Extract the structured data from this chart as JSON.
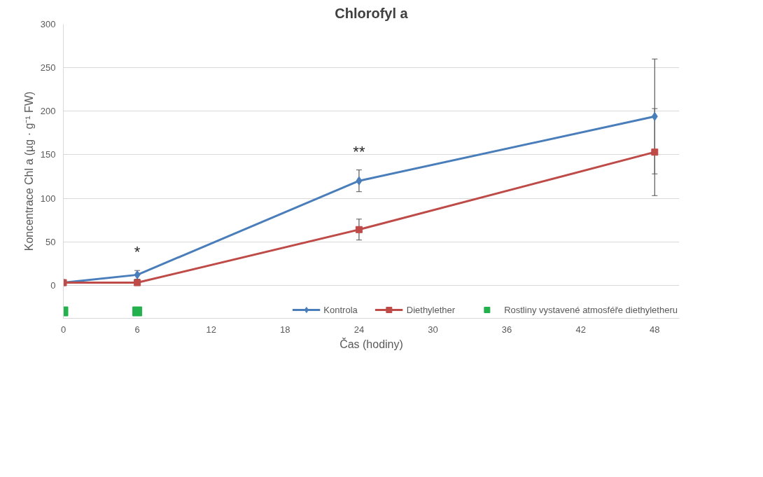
{
  "chart_data": {
    "type": "line",
    "title": "Chlorofyl a",
    "xlabel": "Čas (hodiny)",
    "ylabel": "Koncentrace Chl a (µg · g⁻¹ FW)",
    "x": [
      0,
      6,
      24,
      48
    ],
    "series": [
      {
        "name": "Kontrola",
        "color": "#4a7ebb",
        "marker": "diamond",
        "values": [
          3,
          12,
          120,
          194
        ],
        "errors": [
          null,
          5,
          12.5,
          66
        ]
      },
      {
        "name": "Diethylether",
        "color": "#be4b48",
        "marker": "square",
        "values": [
          3,
          3,
          64,
          153
        ],
        "errors": [
          null,
          null,
          12,
          50
        ]
      },
      {
        "name": "Rostliny vystavené atmosféře diethyletheru",
        "type": "scatter",
        "marker": "square",
        "color": "#22b14c",
        "x": [
          0,
          6
        ],
        "values": [
          -30,
          -30
        ]
      }
    ],
    "xlim": [
      0,
      50
    ],
    "xticks": [
      0,
      6,
      12,
      18,
      24,
      30,
      36,
      42,
      48
    ],
    "ylim": [
      -38,
      300
    ],
    "yticks": [
      0,
      50,
      100,
      150,
      200,
      250,
      300
    ],
    "grid": "y",
    "legend": "bottom",
    "annotations": [
      {
        "text": "*",
        "x": 6,
        "y": 17
      },
      {
        "text": "**",
        "x": 24,
        "y": 132.5
      }
    ]
  }
}
